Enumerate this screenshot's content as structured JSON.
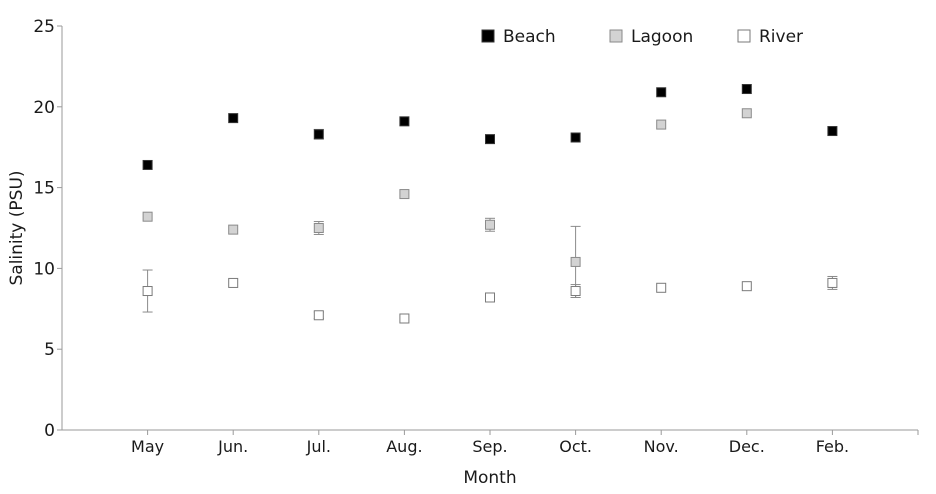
{
  "chart_data": {
    "type": "scatter",
    "title": "",
    "xlabel": "Month",
    "ylabel": "Salinity (PSU)",
    "ylim": [
      0,
      25
    ],
    "yticks": [
      0,
      5,
      10,
      15,
      20,
      25
    ],
    "grid": false,
    "legend_position": "top-right",
    "categories": [
      "May",
      "Jun.",
      "Jul.",
      "Aug.",
      "Sep.",
      "Oct.",
      "Nov.",
      "Dec.",
      "Feb."
    ],
    "series": [
      {
        "name": "Beach",
        "marker": "filled-square",
        "color": "#000000",
        "values": [
          16.4,
          19.3,
          18.3,
          19.1,
          18.0,
          18.1,
          20.9,
          21.1,
          18.5
        ],
        "errors": [
          0,
          0,
          0.3,
          0,
          0,
          0,
          0,
          0,
          0
        ]
      },
      {
        "name": "Lagoon",
        "marker": "gray-square",
        "color": "#d3d3d3",
        "values": [
          13.2,
          12.4,
          12.5,
          14.6,
          12.7,
          10.4,
          18.9,
          19.6,
          null
        ],
        "errors": [
          0,
          0,
          0.4,
          0,
          0.4,
          2.2,
          0,
          0,
          0
        ]
      },
      {
        "name": "River",
        "marker": "open-square",
        "color": "#ffffff",
        "values": [
          8.6,
          9.1,
          7.1,
          6.9,
          8.2,
          8.6,
          8.8,
          8.9,
          9.1
        ],
        "errors": [
          1.3,
          0,
          0.2,
          0,
          0,
          0.4,
          0,
          0,
          0.4
        ]
      }
    ]
  }
}
